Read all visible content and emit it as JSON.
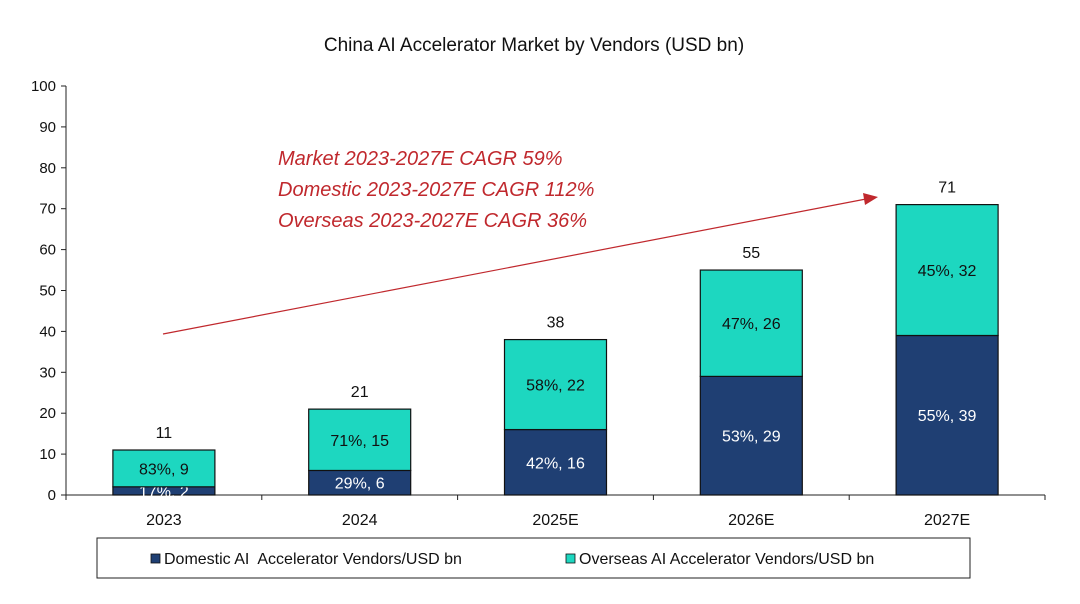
{
  "chart_data": {
    "type": "bar",
    "stacked": true,
    "title": "China AI Accelerator Market by Vendors (USD bn)",
    "xlabel": "",
    "ylabel": "",
    "ylim": [
      0,
      100
    ],
    "yticks": [
      "0",
      "10",
      "20",
      "30",
      "40",
      "50",
      "60",
      "70",
      "80",
      "90",
      "100"
    ],
    "categories": [
      "2023",
      "2024",
      "2025E",
      "2026E",
      "2027E"
    ],
    "totals": [
      "11",
      "21",
      "38",
      "55",
      "71"
    ],
    "series": [
      {
        "name": "Domestic AI  Accelerator Vendors/USD bn",
        "color": "#1f3f73",
        "label_color": "#ffffff",
        "values": [
          2,
          6,
          16,
          29,
          39
        ],
        "labels": [
          "17%, 2",
          "29%, 6",
          "42%, 16",
          "53%, 29",
          "55%, 39"
        ]
      },
      {
        "name": "Overseas AI Accelerator Vendors/USD bn",
        "color": "#1dd7c0",
        "label_color": "#111111",
        "values": [
          9,
          15,
          22,
          26,
          32
        ],
        "labels": [
          "83%, 9",
          "71%, 15",
          "58%, 22",
          "47%, 26",
          "45%, 32"
        ]
      }
    ],
    "annotations": [
      "Market 2023-2027E CAGR 59%",
      "Domestic 2023-2027E CAGR 112%",
      "Overseas 2023-2027E CAGR 36%"
    ],
    "annotation_color": "#c0282d",
    "grid": false,
    "legend_position": "bottom"
  }
}
